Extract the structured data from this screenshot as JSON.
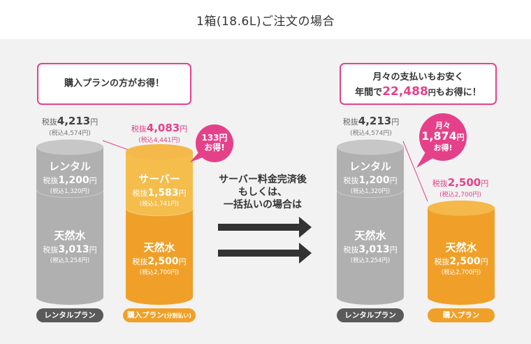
{
  "page": {
    "title": "1箱(18.6L)ご注文の場合"
  },
  "left_callout": {
    "text": "購入プランの方がお得！"
  },
  "right_callout": {
    "line1": "月々の支払いもお安く",
    "line2_prefix": "年間で",
    "line2_amount": "22,488",
    "line2_unit": "円",
    "line2_suffix": "もお得に！"
  },
  "mid_text": {
    "line1": "サーバー料金完済後",
    "line2": "もしくは、",
    "line3": "一括払いの場合は"
  },
  "badge_left": {
    "line1": "133円",
    "line2": "お得!"
  },
  "badge_right": {
    "line1": "月々",
    "amount": "1,874",
    "unit": "円",
    "line3": "お得!"
  },
  "totals": {
    "rental_left": {
      "prefix": "税抜",
      "amount": "4,213",
      "unit": "円",
      "incl": "(税込4,574円)"
    },
    "purchase_installment": {
      "prefix": "税抜",
      "amount": "4,083",
      "unit": "円",
      "incl": "(税込4,441円)"
    },
    "rental_right": {
      "prefix": "税抜",
      "amount": "4,213",
      "unit": "円",
      "incl": "(税込4,574円)"
    },
    "purchase": {
      "prefix": "税抜",
      "amount": "2,500",
      "unit": "円",
      "incl": "(税込2,700円)"
    }
  },
  "segments": {
    "rental": {
      "title": "レンタル",
      "prefix": "税抜",
      "amount": "1,200",
      "unit": "円",
      "incl": "(税込1,320円)"
    },
    "water_gray": {
      "title": "天然水",
      "prefix": "税抜",
      "amount": "3,013",
      "unit": "円",
      "incl": "(税込3,254円)"
    },
    "server": {
      "title": "サーバー",
      "prefix": "税抜",
      "amount": "1,583",
      "unit": "円",
      "incl": "(税込1,741円)"
    },
    "water_orange": {
      "title": "天然水",
      "prefix": "税抜",
      "amount": "2,500",
      "unit": "円",
      "incl": "(税込2,700円)"
    }
  },
  "labels": {
    "rental_plan_1": "レンタルプラン",
    "purchase_plan_installment": "購入プラン",
    "installment_note": "(分割払い)",
    "rental_plan_2": "レンタルプラン",
    "purchase_plan": "購入プラン"
  },
  "colors": {
    "gray_body": "#b0b0b0",
    "gray_top": "#c7c7c7",
    "orange_body": "#f0a028",
    "orange_top": "#f5b84a",
    "server_light": "#f4bd4c",
    "pink": "#e5418a",
    "arrow": "#333333"
  },
  "chart_data": [
    {
      "type": "bar",
      "stacked": true,
      "unit": "円",
      "categories": [
        "レンタルプラン",
        "購入プラン(分割払い)"
      ],
      "series": [
        {
          "name": "天然水",
          "values": [
            3013,
            2500
          ]
        },
        {
          "name": "レンタル",
          "values": [
            1200,
            0
          ]
        },
        {
          "name": "サーバー",
          "values": [
            0,
            1583
          ]
        }
      ],
      "totals": [
        4213,
        4083
      ]
    },
    {
      "type": "bar",
      "stacked": true,
      "unit": "円",
      "categories": [
        "レンタルプラン",
        "購入プラン"
      ],
      "series": [
        {
          "name": "天然水",
          "values": [
            3013,
            2500
          ]
        },
        {
          "name": "レンタル",
          "values": [
            1200,
            0
          ]
        }
      ],
      "totals": [
        4213,
        2500
      ]
    }
  ]
}
